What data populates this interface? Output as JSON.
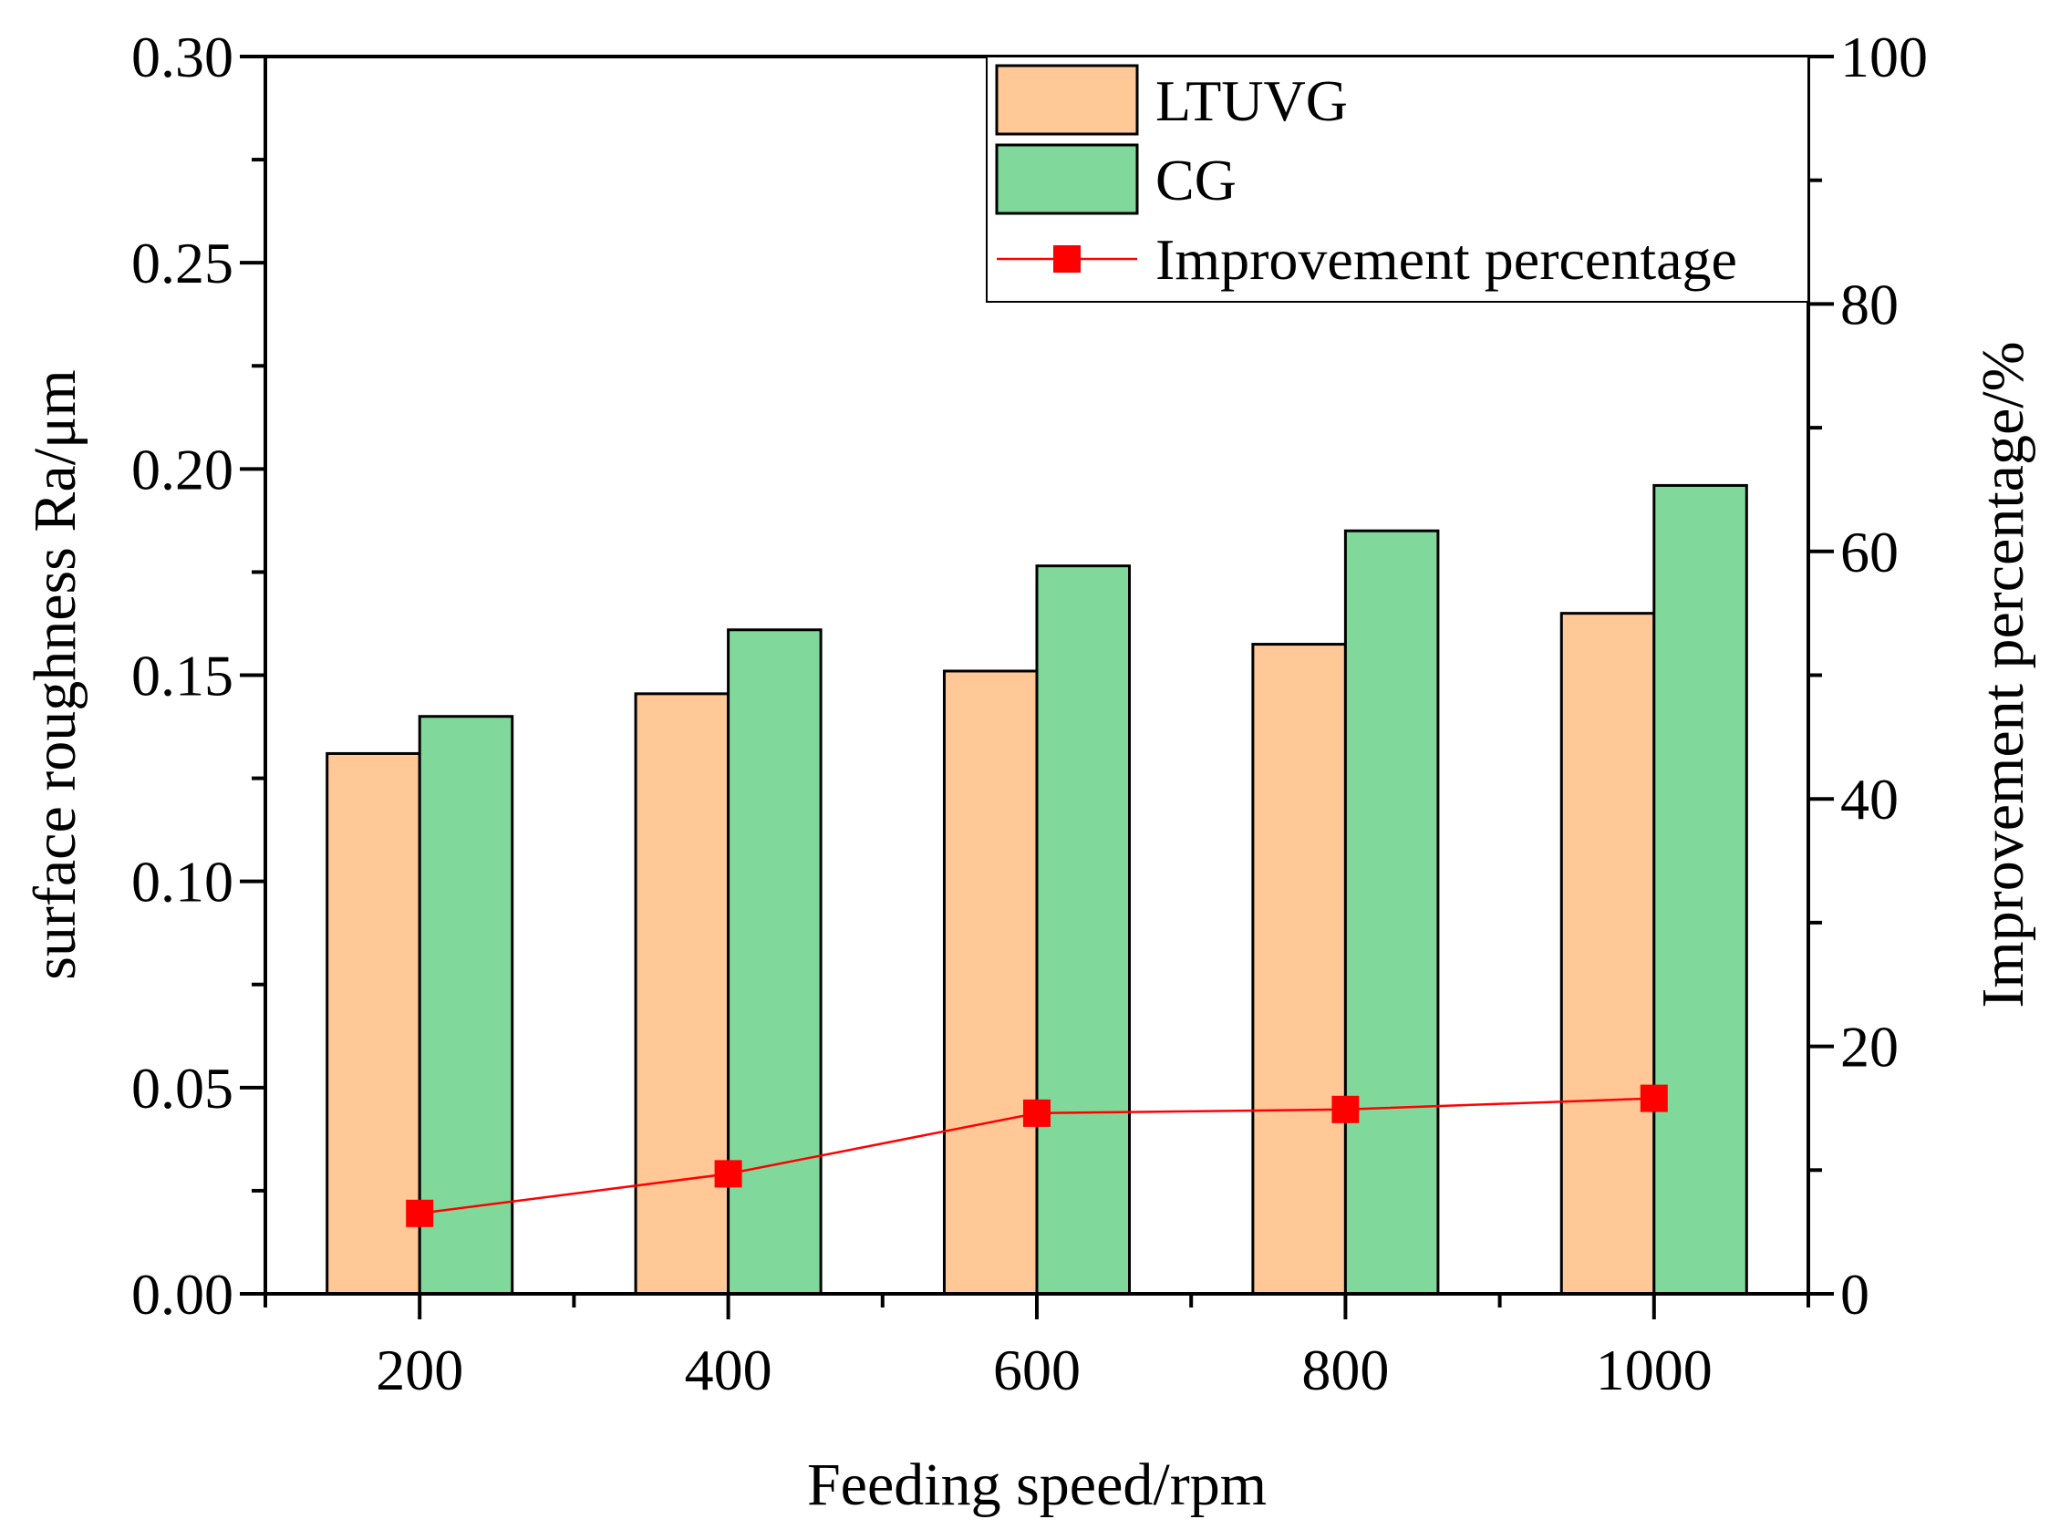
{
  "chart_data": {
    "type": "bar",
    "title": "",
    "xlabel": "Feeding speed/rpm",
    "ylabel": "surface roughness Ra/μm",
    "y2label": "Improvement percentage/%",
    "categories": [
      200,
      400,
      600,
      800,
      1000
    ],
    "xlim": [
      100,
      1100
    ],
    "ylim": [
      0,
      0.3
    ],
    "y2lim": [
      0,
      100
    ],
    "xticks": [
      "200",
      "400",
      "600",
      "800",
      "1000"
    ],
    "yticks": [
      "0.00",
      "0.05",
      "0.10",
      "0.15",
      "0.20",
      "0.25",
      "0.30"
    ],
    "y2ticks": [
      "0",
      "20",
      "40",
      "60",
      "80",
      "100"
    ],
    "grid": false,
    "legend_position": "top-right",
    "series": [
      {
        "name": "LTUVG",
        "type": "bar",
        "axis": "left",
        "color": "#FFC896",
        "values": [
          0.131,
          0.1455,
          0.151,
          0.1575,
          0.165
        ]
      },
      {
        "name": "CG",
        "type": "bar",
        "axis": "left",
        "color": "#80D99B",
        "values": [
          0.14,
          0.161,
          0.1765,
          0.185,
          0.196
        ]
      },
      {
        "name": "Improvement percentage",
        "type": "line",
        "axis": "right",
        "color": "#FF0000",
        "values": [
          6.5,
          9.7,
          14.6,
          14.9,
          15.8
        ]
      }
    ]
  }
}
